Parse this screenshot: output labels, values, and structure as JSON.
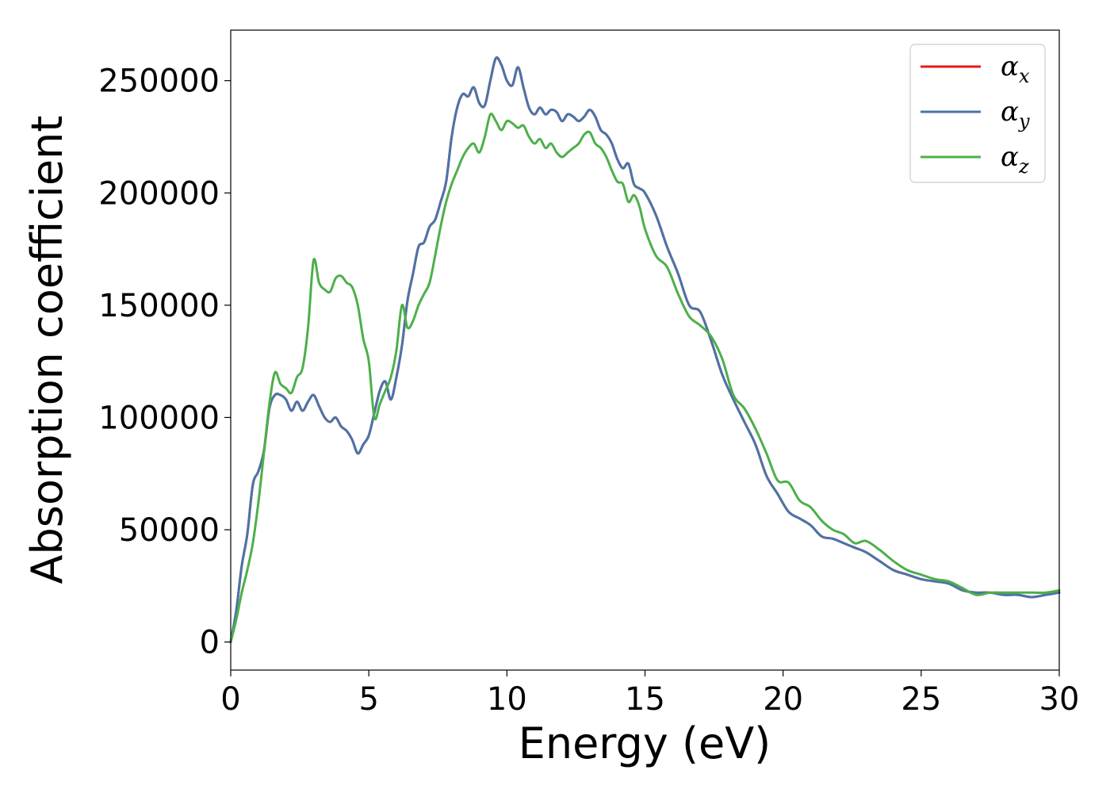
{
  "chart_data": {
    "type": "line",
    "xlabel": "Energy (eV)",
    "ylabel": "Absorption coefficient",
    "xlim": [
      0,
      30
    ],
    "ylim": [
      -12500,
      272500
    ],
    "xticks": [
      0,
      5,
      10,
      15,
      20,
      25,
      30
    ],
    "yticks": [
      0,
      50000,
      100000,
      150000,
      200000,
      250000
    ],
    "grid": false,
    "legend": "top-right",
    "series": [
      {
        "name": "α",
        "subscript": "x",
        "color": "#e41a1c",
        "x": [
          0,
          0.2,
          0.4,
          0.6,
          0.8,
          1.0,
          1.2,
          1.4,
          1.6,
          1.8,
          2.0,
          2.2,
          2.4,
          2.6,
          2.8,
          3.0,
          3.2,
          3.4,
          3.6,
          3.8,
          4.0,
          4.2,
          4.4,
          4.6,
          4.8,
          5.0,
          5.2,
          5.4,
          5.6,
          5.8,
          6.0,
          6.2,
          6.4,
          6.6,
          6.8,
          7.0,
          7.2,
          7.4,
          7.6,
          7.8,
          8.0,
          8.2,
          8.4,
          8.6,
          8.8,
          9.0,
          9.2,
          9.4,
          9.6,
          9.8,
          10.0,
          10.2,
          10.4,
          10.6,
          10.8,
          11.0,
          11.2,
          11.4,
          11.6,
          11.8,
          12.0,
          12.2,
          12.4,
          12.6,
          12.8,
          13.0,
          13.2,
          13.4,
          13.6,
          13.8,
          14.0,
          14.2,
          14.4,
          14.6,
          14.8,
          15.0,
          15.4,
          15.8,
          16.2,
          16.6,
          17.0,
          17.4,
          17.8,
          18.2,
          18.6,
          19.0,
          19.4,
          19.8,
          20.2,
          20.6,
          21.0,
          21.4,
          21.8,
          22.2,
          22.6,
          23.0,
          23.5,
          24.0,
          24.5,
          25.0,
          25.5,
          26.0,
          26.5,
          27.0,
          27.5,
          28.0,
          28.5,
          29.0,
          29.5,
          30.0
        ],
        "y": [
          0,
          14000,
          34000,
          48000,
          70000,
          76000,
          85000,
          104000,
          110000,
          110000,
          108000,
          103000,
          107000,
          103000,
          107000,
          110000,
          105000,
          100000,
          98000,
          100000,
          96000,
          94000,
          90000,
          84000,
          88000,
          92000,
          102000,
          112000,
          116000,
          108000,
          118000,
          132000,
          152000,
          164000,
          176000,
          178000,
          185000,
          188000,
          196000,
          205000,
          225000,
          238000,
          244000,
          243000,
          247000,
          240000,
          239000,
          250000,
          260000,
          257000,
          250000,
          248000,
          256000,
          247000,
          238000,
          235000,
          238000,
          235000,
          237000,
          236000,
          232000,
          235000,
          234000,
          232000,
          234000,
          237000,
          234000,
          228000,
          226000,
          222000,
          215000,
          211000,
          213000,
          204000,
          202000,
          200000,
          190000,
          176000,
          164000,
          150000,
          147000,
          134000,
          119000,
          108000,
          98000,
          88000,
          74000,
          66000,
          58000,
          55000,
          52000,
          47000,
          46000,
          44000,
          42000,
          40000,
          36000,
          32000,
          30000,
          28000,
          27000,
          26000,
          23000,
          22000,
          22000,
          21000,
          21000,
          20000,
          21000,
          22000
        ]
      },
      {
        "name": "α",
        "subscript": "y",
        "color": "#4a74a8",
        "x": [
          0,
          0.2,
          0.4,
          0.6,
          0.8,
          1.0,
          1.2,
          1.4,
          1.6,
          1.8,
          2.0,
          2.2,
          2.4,
          2.6,
          2.8,
          3.0,
          3.2,
          3.4,
          3.6,
          3.8,
          4.0,
          4.2,
          4.4,
          4.6,
          4.8,
          5.0,
          5.2,
          5.4,
          5.6,
          5.8,
          6.0,
          6.2,
          6.4,
          6.6,
          6.8,
          7.0,
          7.2,
          7.4,
          7.6,
          7.8,
          8.0,
          8.2,
          8.4,
          8.6,
          8.8,
          9.0,
          9.2,
          9.4,
          9.6,
          9.8,
          10.0,
          10.2,
          10.4,
          10.6,
          10.8,
          11.0,
          11.2,
          11.4,
          11.6,
          11.8,
          12.0,
          12.2,
          12.4,
          12.6,
          12.8,
          13.0,
          13.2,
          13.4,
          13.6,
          13.8,
          14.0,
          14.2,
          14.4,
          14.6,
          14.8,
          15.0,
          15.4,
          15.8,
          16.2,
          16.6,
          17.0,
          17.4,
          17.8,
          18.2,
          18.6,
          19.0,
          19.4,
          19.8,
          20.2,
          20.6,
          21.0,
          21.4,
          21.8,
          22.2,
          22.6,
          23.0,
          23.5,
          24.0,
          24.5,
          25.0,
          25.5,
          26.0,
          26.5,
          27.0,
          27.5,
          28.0,
          28.5,
          29.0,
          29.5,
          30.0
        ],
        "y": [
          0,
          14000,
          34000,
          48000,
          70000,
          76000,
          85000,
          104000,
          110000,
          110000,
          108000,
          103000,
          107000,
          103000,
          107000,
          110000,
          105000,
          100000,
          98000,
          100000,
          96000,
          94000,
          90000,
          84000,
          88000,
          92000,
          102000,
          112000,
          116000,
          108000,
          118000,
          132000,
          152000,
          164000,
          176000,
          178000,
          185000,
          188000,
          196000,
          205000,
          225000,
          238000,
          244000,
          243000,
          247000,
          240000,
          239000,
          250000,
          260000,
          257000,
          250000,
          248000,
          256000,
          247000,
          238000,
          235000,
          238000,
          235000,
          237000,
          236000,
          232000,
          235000,
          234000,
          232000,
          234000,
          237000,
          234000,
          228000,
          226000,
          222000,
          215000,
          211000,
          213000,
          204000,
          202000,
          200000,
          190000,
          176000,
          164000,
          150000,
          147000,
          134000,
          119000,
          108000,
          98000,
          88000,
          74000,
          66000,
          58000,
          55000,
          52000,
          47000,
          46000,
          44000,
          42000,
          40000,
          36000,
          32000,
          30000,
          28000,
          27000,
          26000,
          23000,
          22000,
          22000,
          21000,
          21000,
          20000,
          21000,
          22000
        ]
      },
      {
        "name": "α",
        "subscript": "z",
        "color": "#4daf4a",
        "x": [
          0,
          0.2,
          0.4,
          0.6,
          0.8,
          1.0,
          1.2,
          1.4,
          1.6,
          1.8,
          2.0,
          2.2,
          2.4,
          2.6,
          2.8,
          3.0,
          3.2,
          3.4,
          3.6,
          3.8,
          4.0,
          4.2,
          4.4,
          4.6,
          4.8,
          5.0,
          5.2,
          5.4,
          5.6,
          5.8,
          6.0,
          6.2,
          6.4,
          6.6,
          6.8,
          7.0,
          7.2,
          7.4,
          7.6,
          7.8,
          8.0,
          8.2,
          8.4,
          8.6,
          8.8,
          9.0,
          9.2,
          9.4,
          9.6,
          9.8,
          10.0,
          10.2,
          10.4,
          10.6,
          10.8,
          11.0,
          11.2,
          11.4,
          11.6,
          11.8,
          12.0,
          12.2,
          12.4,
          12.6,
          12.8,
          13.0,
          13.2,
          13.4,
          13.6,
          13.8,
          14.0,
          14.2,
          14.4,
          14.6,
          14.8,
          15.0,
          15.4,
          15.8,
          16.2,
          16.6,
          17.0,
          17.4,
          17.8,
          18.2,
          18.6,
          19.0,
          19.4,
          19.8,
          20.2,
          20.6,
          21.0,
          21.4,
          21.8,
          22.2,
          22.6,
          23.0,
          23.5,
          24.0,
          24.5,
          25.0,
          25.5,
          26.0,
          26.5,
          27.0,
          27.5,
          28.0,
          28.5,
          29.0,
          29.5,
          30.0
        ],
        "y": [
          0,
          10000,
          22000,
          32000,
          44000,
          62000,
          84000,
          106000,
          120000,
          115000,
          113000,
          111000,
          118000,
          122000,
          140000,
          170000,
          160000,
          157000,
          156000,
          162000,
          163000,
          160000,
          158000,
          150000,
          135000,
          125000,
          100000,
          106000,
          112000,
          118000,
          130000,
          150000,
          140000,
          143000,
          150000,
          155000,
          160000,
          172000,
          185000,
          196000,
          204000,
          210000,
          216000,
          220000,
          222000,
          218000,
          225000,
          235000,
          232000,
          228000,
          232000,
          231000,
          229000,
          230000,
          225000,
          222000,
          224000,
          220000,
          222000,
          218000,
          216000,
          218000,
          220000,
          222000,
          226000,
          227000,
          222000,
          220000,
          216000,
          210000,
          205000,
          204000,
          196000,
          199000,
          194000,
          184000,
          172000,
          167000,
          155000,
          145000,
          141000,
          136000,
          126000,
          110000,
          104000,
          95000,
          84000,
          72000,
          71000,
          63000,
          60000,
          54000,
          50000,
          48000,
          44000,
          45000,
          41000,
          36000,
          32000,
          30000,
          28000,
          27000,
          24000,
          21000,
          22000,
          22000,
          22000,
          22000,
          22000,
          23000
        ]
      }
    ]
  }
}
